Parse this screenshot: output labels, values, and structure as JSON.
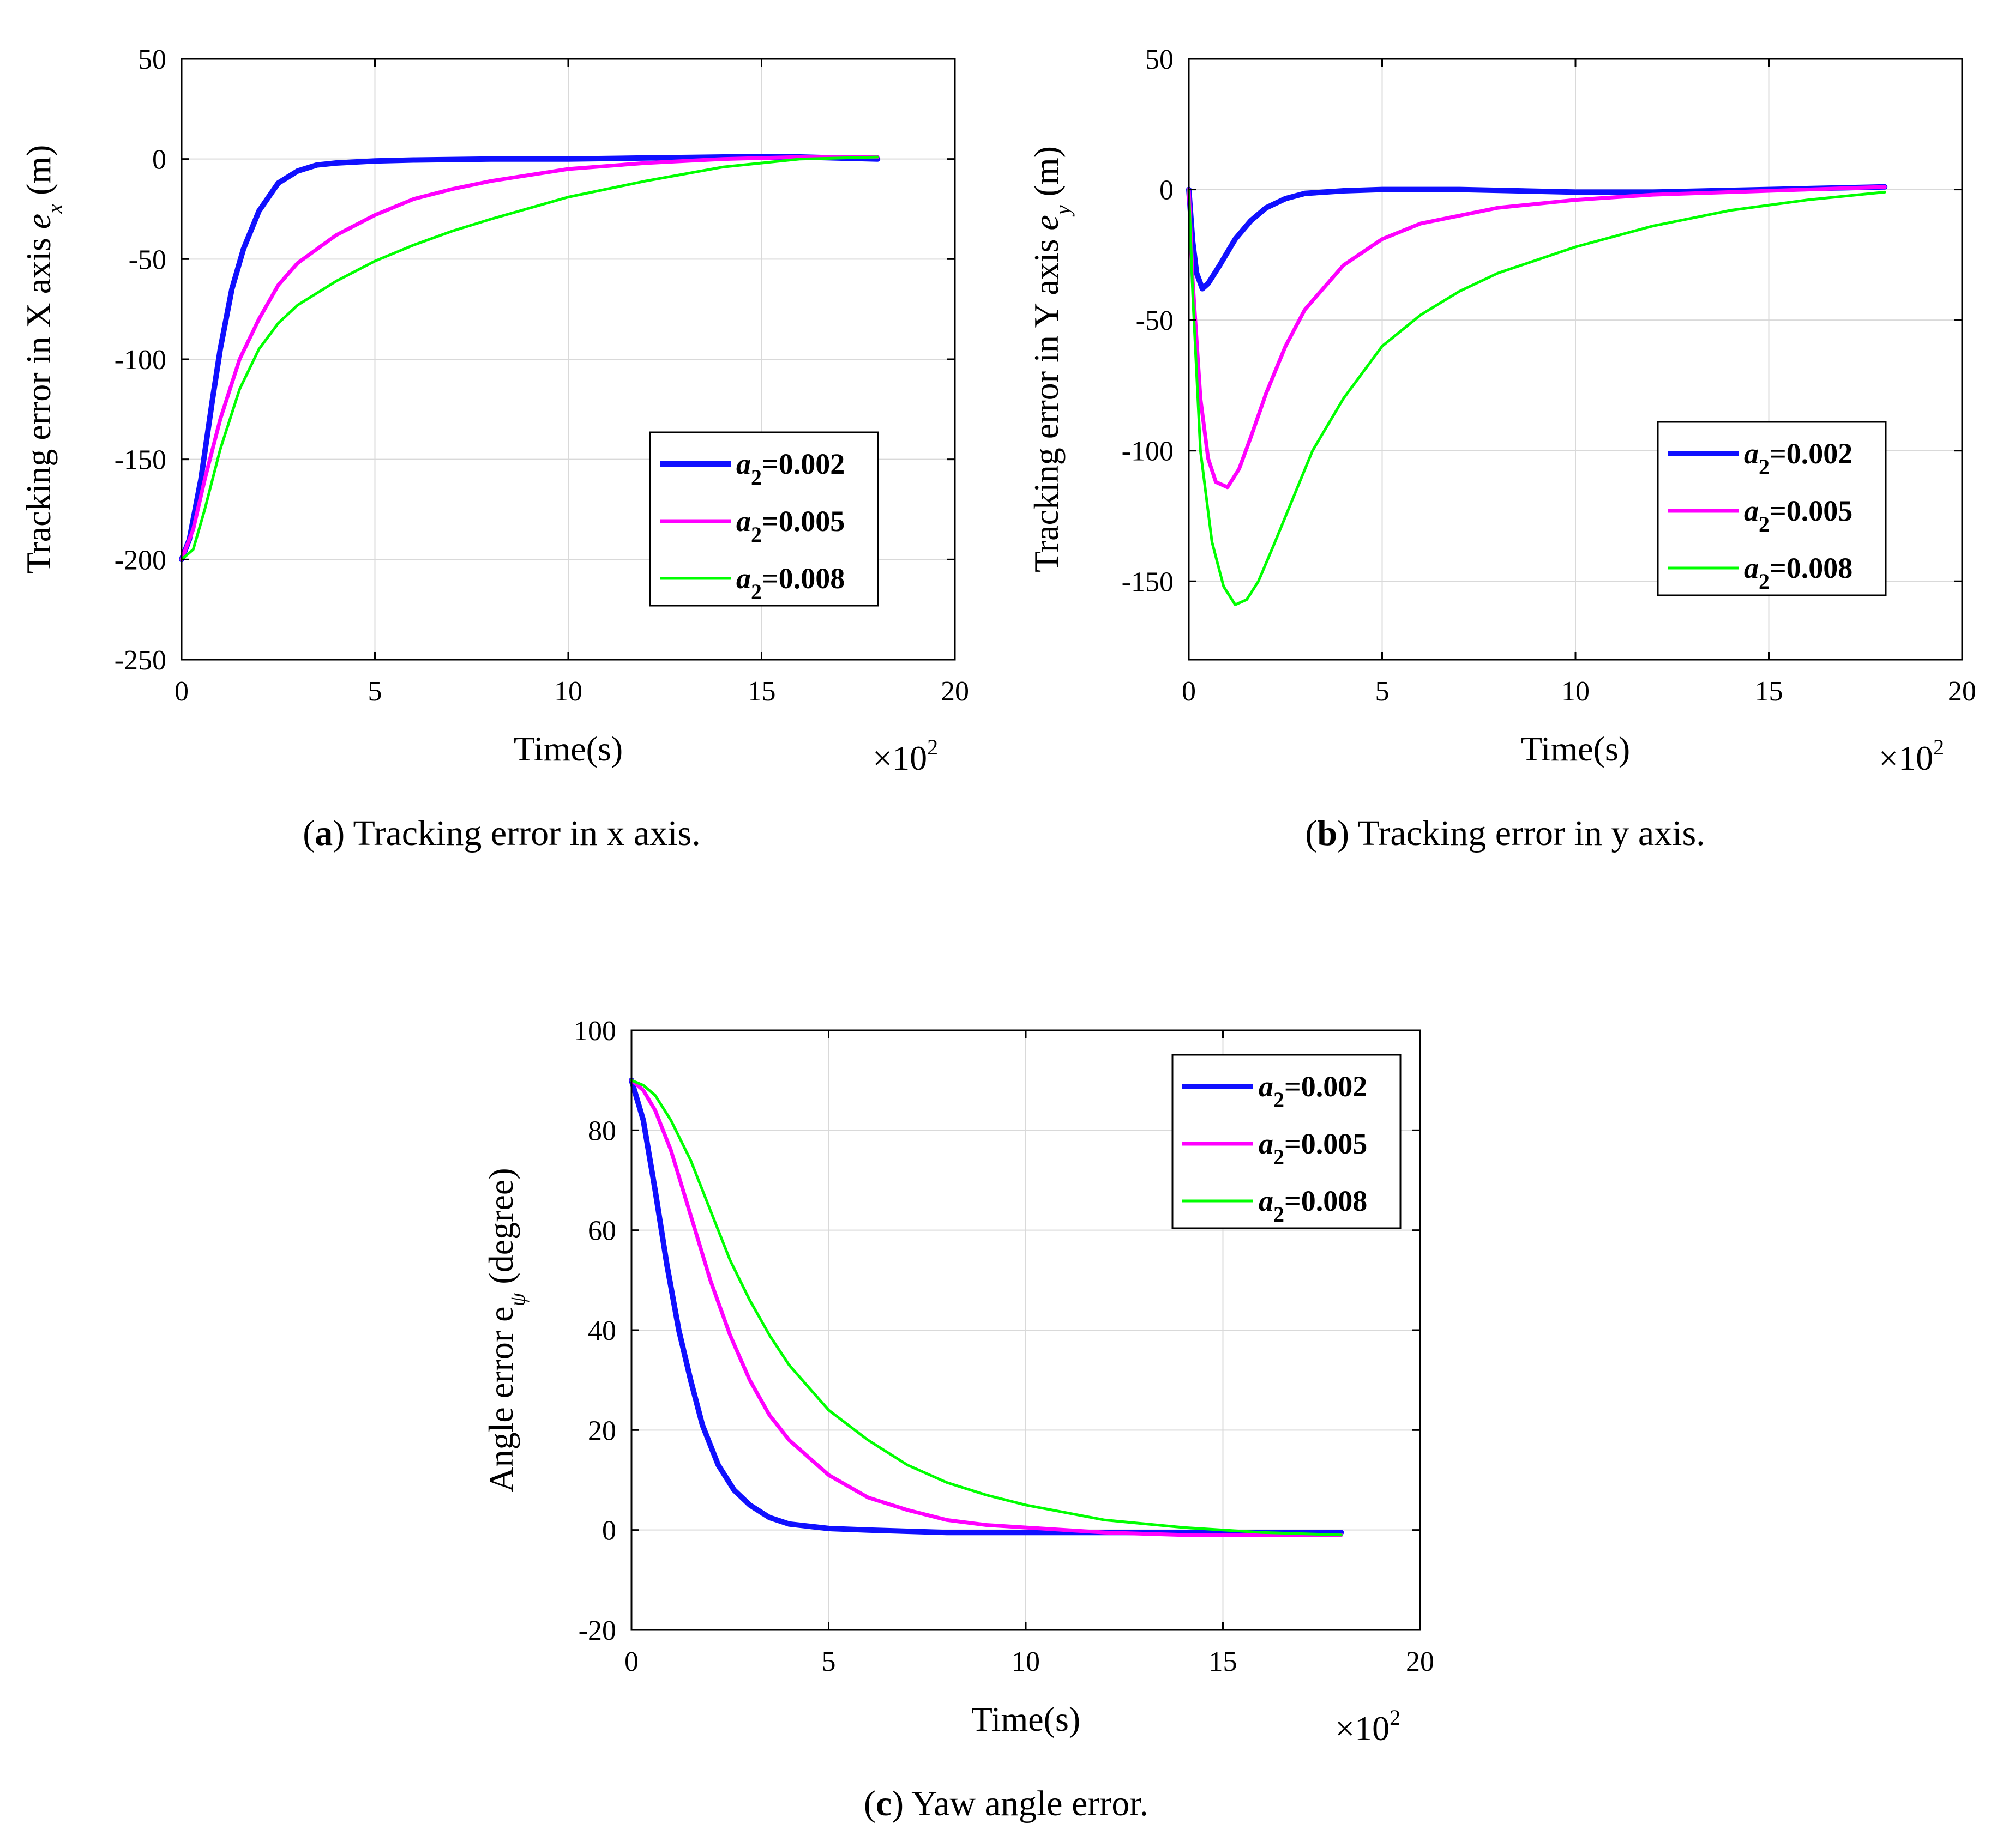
{
  "colors": {
    "a2_0002": "#1010ff",
    "a2_0005": "#ff00ff",
    "a2_0008": "#00ff00"
  },
  "chart_data": [
    {
      "id": "a",
      "type": "line",
      "caption_letter": "a",
      "caption_text": ") Tracking error in x axis.",
      "ylabel_text": "Tracking error in X axis ",
      "ylabel_var": "e",
      "ylabel_sub": "x",
      "ylabel_unit": " (m)",
      "xlabel": "Time(s)",
      "x_multiplier": "×10",
      "x_multiplier_exp": "2",
      "xlim": [
        0,
        20
      ],
      "ylim": [
        -250,
        50
      ],
      "xticks": [
        0,
        5,
        10,
        15,
        20
      ],
      "yticks": [
        50,
        0,
        -50,
        -100,
        -150,
        -200,
        -250
      ],
      "xtick_labels": [
        "0",
        "5",
        "10",
        "15",
        "20"
      ],
      "ytick_labels": [
        "50",
        "0",
        "-50",
        "-100",
        "-150",
        "-200",
        "-250"
      ],
      "legend_location": "right-lower",
      "series": [
        {
          "name": "a2=0.002",
          "label_var": "a",
          "label_sub": "2",
          "label_val": "=0.002",
          "color_key": "a2_0002",
          "width": 10,
          "x": [
            0,
            0.2,
            0.5,
            0.8,
            1.0,
            1.3,
            1.6,
            2.0,
            2.5,
            3.0,
            3.5,
            4.0,
            5.0,
            6.0,
            8.0,
            10,
            12,
            14,
            16,
            18
          ],
          "y": [
            -200,
            -190,
            -160,
            -120,
            -95,
            -65,
            -45,
            -26,
            -12,
            -6,
            -3,
            -2,
            -1,
            -0.5,
            0,
            0,
            0.5,
            1,
            1,
            0
          ]
        },
        {
          "name": "a2=0.005",
          "label_var": "a",
          "label_sub": "2",
          "label_val": "=0.005",
          "color_key": "a2_0005",
          "width": 7,
          "x": [
            0,
            0.3,
            0.6,
            1.0,
            1.5,
            2.0,
            2.5,
            3.0,
            4.0,
            5.0,
            6.0,
            7.0,
            8.0,
            10,
            12,
            14,
            16,
            18
          ],
          "y": [
            -200,
            -185,
            -160,
            -130,
            -100,
            -80,
            -63,
            -52,
            -38,
            -28,
            -20,
            -15,
            -11,
            -5,
            -2,
            0,
            1,
            1
          ]
        },
        {
          "name": "a2=0.008",
          "label_var": "a",
          "label_sub": "2",
          "label_val": "=0.008",
          "color_key": "a2_0008",
          "width": 5,
          "x": [
            0,
            0.3,
            0.6,
            1.0,
            1.5,
            2.0,
            2.5,
            3.0,
            4.0,
            5.0,
            6.0,
            7.0,
            8.0,
            10,
            12,
            14,
            16,
            18
          ],
          "y": [
            -200,
            -195,
            -175,
            -145,
            -115,
            -95,
            -82,
            -73,
            -61,
            -51,
            -43,
            -36,
            -30,
            -19,
            -11,
            -4,
            0,
            1
          ]
        }
      ]
    },
    {
      "id": "b",
      "type": "line",
      "caption_letter": "b",
      "caption_text": ") Tracking error in y axis.",
      "ylabel_text": "Tracking error in Y axis ",
      "ylabel_var": "e",
      "ylabel_sub": "y",
      "ylabel_unit": " (m)",
      "xlabel": "Time(s)",
      "x_multiplier": "×10",
      "x_multiplier_exp": "2",
      "xlim": [
        0,
        20
      ],
      "ylim": [
        -180,
        50
      ],
      "xticks": [
        0,
        5,
        10,
        15,
        20
      ],
      "yticks": [
        50,
        0,
        -50,
        -100,
        -150
      ],
      "xtick_labels": [
        "0",
        "5",
        "10",
        "15",
        "20"
      ],
      "ytick_labels": [
        "50",
        "0",
        "-50",
        "-100",
        "-150"
      ],
      "legend_location": "right-middle",
      "series": [
        {
          "name": "a2=0.002",
          "label_var": "a",
          "label_sub": "2",
          "label_val": "=0.002",
          "color_key": "a2_0002",
          "width": 10,
          "x": [
            0,
            0.1,
            0.2,
            0.35,
            0.5,
            0.8,
            1.2,
            1.6,
            2.0,
            2.5,
            3.0,
            4.0,
            5.0,
            7.0,
            10,
            12,
            15,
            18
          ],
          "y": [
            0,
            -20,
            -32,
            -38,
            -36,
            -29,
            -19,
            -12,
            -7,
            -3.5,
            -1.5,
            -0.5,
            0,
            0,
            -1,
            -1,
            0,
            1
          ]
        },
        {
          "name": "a2=0.005",
          "label_var": "a",
          "label_sub": "2",
          "label_val": "=0.005",
          "color_key": "a2_0005",
          "width": 7,
          "x": [
            0,
            0.1,
            0.3,
            0.5,
            0.7,
            1.0,
            1.3,
            1.6,
            2.0,
            2.5,
            3.0,
            4.0,
            5.0,
            6.0,
            8.0,
            10,
            12,
            14,
            16,
            18
          ],
          "y": [
            0,
            -35,
            -80,
            -103,
            -112,
            -114,
            -107,
            -95,
            -78,
            -60,
            -46,
            -29,
            -19,
            -13,
            -7,
            -4,
            -2,
            -1,
            0,
            1
          ]
        },
        {
          "name": "a2=0.008",
          "label_var": "a",
          "label_sub": "2",
          "label_val": "=0.008",
          "color_key": "a2_0008",
          "width": 5,
          "x": [
            0,
            0.1,
            0.3,
            0.6,
            0.9,
            1.2,
            1.5,
            1.8,
            2.2,
            2.7,
            3.2,
            4.0,
            5.0,
            6.0,
            7.0,
            8.0,
            10,
            12,
            14,
            16,
            18
          ],
          "y": [
            0,
            -40,
            -100,
            -135,
            -152,
            -159,
            -157,
            -150,
            -136,
            -118,
            -100,
            -80,
            -60,
            -48,
            -39,
            -32,
            -22,
            -14,
            -8,
            -4,
            -1
          ]
        }
      ]
    },
    {
      "id": "c",
      "type": "line",
      "caption_letter": "c",
      "caption_text": ") Yaw angle error.",
      "ylabel_text": "Angle error e",
      "ylabel_var": "",
      "ylabel_sub": "ψ",
      "ylabel_unit": " (degree)",
      "xlabel": "Time(s)",
      "x_multiplier": "×10",
      "x_multiplier_exp": "2",
      "xlim": [
        0,
        20
      ],
      "ylim": [
        -20,
        100
      ],
      "xticks": [
        0,
        5,
        10,
        15,
        20
      ],
      "yticks": [
        100,
        80,
        60,
        40,
        20,
        0,
        -20
      ],
      "xtick_labels": [
        "0",
        "5",
        "10",
        "15",
        "20"
      ],
      "ytick_labels": [
        "100",
        "80",
        "60",
        "40",
        "20",
        "0",
        "-20"
      ],
      "legend_location": "top-right",
      "series": [
        {
          "name": "a2=0.002",
          "label_var": "a",
          "label_sub": "2",
          "label_val": "=0.002",
          "color_key": "a2_0002",
          "width": 10,
          "x": [
            0,
            0.3,
            0.6,
            0.9,
            1.2,
            1.5,
            1.8,
            2.2,
            2.6,
            3.0,
            3.5,
            4.0,
            5.0,
            6.0,
            8.0,
            10,
            12,
            14,
            16,
            18
          ],
          "y": [
            90,
            82,
            68,
            53,
            40,
            30,
            21,
            13,
            8,
            5,
            2.5,
            1.2,
            0.3,
            0,
            -0.5,
            -0.5,
            -0.5,
            -0.5,
            -0.5,
            -0.5
          ]
        },
        {
          "name": "a2=0.005",
          "label_var": "a",
          "label_sub": "2",
          "label_val": "=0.005",
          "color_key": "a2_0005",
          "width": 7,
          "x": [
            0,
            0.3,
            0.6,
            1.0,
            1.5,
            2.0,
            2.5,
            3.0,
            3.5,
            4.0,
            5.0,
            6.0,
            7.0,
            8.0,
            9.0,
            10,
            12,
            14,
            16,
            18
          ],
          "y": [
            90,
            88,
            84,
            76,
            63,
            50,
            39,
            30,
            23,
            18,
            11,
            6.5,
            4,
            2,
            1,
            0.5,
            -0.5,
            -1,
            -1,
            -1
          ]
        },
        {
          "name": "a2=0.008",
          "label_var": "a",
          "label_sub": "2",
          "label_val": "=0.008",
          "color_key": "a2_0008",
          "width": 5,
          "x": [
            0,
            0.3,
            0.6,
            1.0,
            1.5,
            2.0,
            2.5,
            3.0,
            3.5,
            4.0,
            5.0,
            6.0,
            7.0,
            8.0,
            9.0,
            10,
            12,
            14,
            16,
            18
          ],
          "y": [
            90,
            89,
            87,
            82,
            74,
            64,
            54,
            46,
            39,
            33,
            24,
            18,
            13,
            9.5,
            7,
            5,
            2,
            0.5,
            -0.5,
            -1
          ]
        }
      ]
    }
  ]
}
